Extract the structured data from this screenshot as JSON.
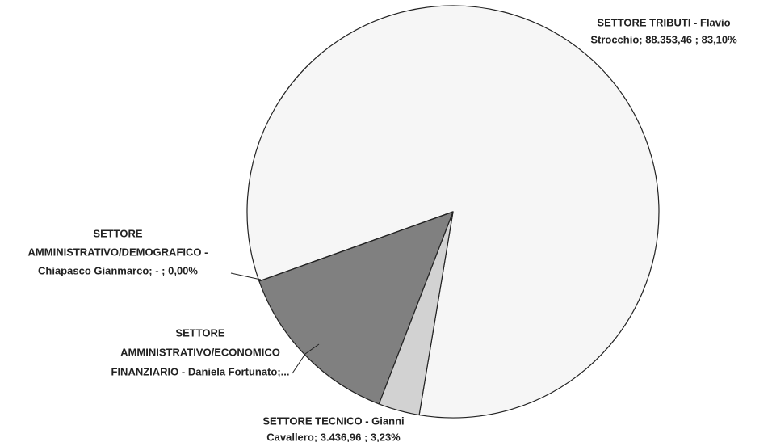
{
  "chart_data": {
    "type": "pie",
    "values": [
      83.1,
      3.23,
      13.67,
      0
    ],
    "colors": [
      "#f6f6f6",
      "#d2d2d2",
      "#808080",
      "#5a5a5a"
    ],
    "value_labels": [
      [
        "SETTORE TRIBUTI - Flavio",
        "Strocchio;  88.353,46 ; 83,10%"
      ],
      [
        "SETTORE TECNICO - Gianni",
        "Cavallero;  3.436,96 ; 3,23%"
      ],
      [
        "SETTORE",
        "AMMINISTRATIVO/ECONOMICO",
        "FINANZIARIO - Daniela Fortunato;..."
      ],
      [
        "SETTORE",
        "AMMINISTRATIVO/DEMOGRAFICO -",
        "Chiapasco Gianmarco;  -   ; 0,00%"
      ]
    ]
  }
}
